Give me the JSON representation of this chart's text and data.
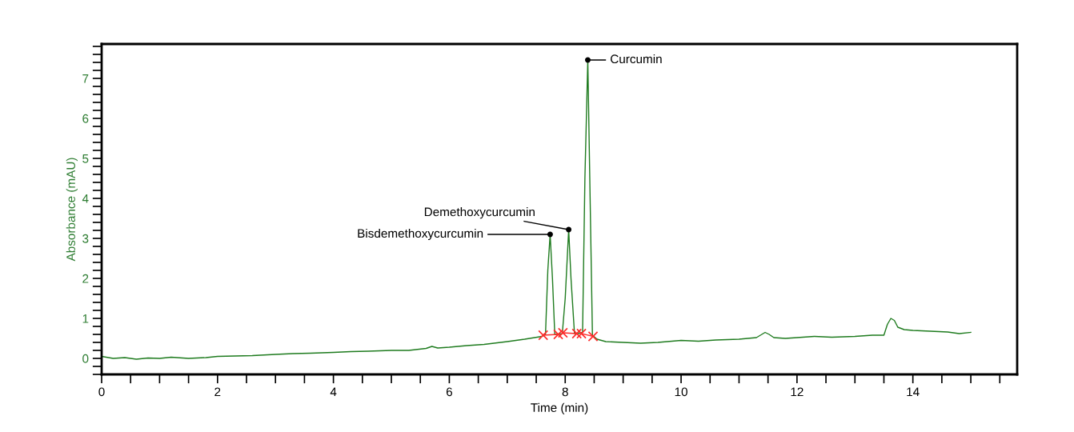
{
  "chart_data": {
    "type": "line",
    "xlabel": "Time (min)",
    "ylabel": "Absorbance (mAU)",
    "xlim": [
      0,
      15.8
    ],
    "ylim": [
      -0.4,
      7.86
    ],
    "xticks": [
      0,
      {
        "value": 0.5,
        "label": null
      },
      {
        "value": 1,
        "label": null
      },
      {
        "value": 1.5,
        "label": null
      },
      2,
      {
        "value": 2.5,
        "label": null
      },
      {
        "value": 3,
        "label": null
      },
      {
        "value": 3.5,
        "label": null
      },
      4,
      {
        "value": 4.5,
        "label": null
      },
      {
        "value": 5,
        "label": null
      },
      {
        "value": 5.5,
        "label": null
      },
      6,
      {
        "value": 6.5,
        "label": null
      },
      {
        "value": 7,
        "label": null
      },
      {
        "value": 7.5,
        "label": null
      },
      8,
      {
        "value": 8.5,
        "label": null
      },
      {
        "value": 9,
        "label": null
      },
      {
        "value": 9.5,
        "label": null
      },
      10,
      {
        "value": 10.5,
        "label": null
      },
      {
        "value": 11,
        "label": null
      },
      {
        "value": 11.5,
        "label": null
      },
      12,
      {
        "value": 12.5,
        "label": null
      },
      {
        "value": 13,
        "label": null
      },
      {
        "value": 13.5,
        "label": null
      },
      14,
      {
        "value": 14.5,
        "label": null
      },
      {
        "value": 15,
        "label": null
      },
      {
        "value": 15.5,
        "label": null
      }
    ],
    "yticks": [
      {
        "value": -0.4,
        "label": null
      },
      {
        "value": -0.2,
        "label": null
      },
      0,
      {
        "value": 0.2,
        "label": null
      },
      {
        "value": 0.4,
        "label": null
      },
      {
        "value": 0.6,
        "label": null
      },
      {
        "value": 0.8,
        "label": null
      },
      1,
      {
        "value": 1.2,
        "label": null
      },
      {
        "value": 1.4,
        "label": null
      },
      {
        "value": 1.6,
        "label": null
      },
      {
        "value": 1.8,
        "label": null
      },
      2,
      {
        "value": 2.2,
        "label": null
      },
      {
        "value": 2.4,
        "label": null
      },
      {
        "value": 2.6,
        "label": null
      },
      {
        "value": 2.8,
        "label": null
      },
      3,
      {
        "value": 3.2,
        "label": null
      },
      {
        "value": 3.4,
        "label": null
      },
      {
        "value": 3.6,
        "label": null
      },
      {
        "value": 3.8,
        "label": null
      },
      4,
      {
        "value": 4.2,
        "label": null
      },
      {
        "value": 4.4,
        "label": null
      },
      {
        "value": 4.6,
        "label": null
      },
      {
        "value": 4.8,
        "label": null
      },
      5,
      {
        "value": 5.2,
        "label": null
      },
      {
        "value": 5.4,
        "label": null
      },
      {
        "value": 5.6,
        "label": null
      },
      {
        "value": 5.8,
        "label": null
      },
      6,
      {
        "value": 6.2,
        "label": null
      },
      {
        "value": 6.4,
        "label": null
      },
      {
        "value": 6.6,
        "label": null
      },
      {
        "value": 6.8,
        "label": null
      },
      7,
      {
        "value": 7.2,
        "label": null
      },
      {
        "value": 7.4,
        "label": null
      },
      {
        "value": 7.6,
        "label": null
      },
      {
        "value": 7.8,
        "label": null
      }
    ],
    "grid": false,
    "legend": false,
    "series": [
      {
        "color": "#1e7b1e",
        "marker": "none",
        "line_style": "solid",
        "x": [
          0,
          0.2,
          0.4,
          0.6,
          0.8,
          1.0,
          1.2,
          1.5,
          1.8,
          2.0,
          2.3,
          2.6,
          3.0,
          3.3,
          3.6,
          4.0,
          4.3,
          4.6,
          5.0,
          5.3,
          5.6,
          5.7,
          5.8,
          6.0,
          6.3,
          6.6,
          7.0,
          7.3,
          7.6,
          7.66,
          7.7,
          7.74,
          7.78,
          7.82,
          7.88,
          7.95,
          8.0,
          8.06,
          8.1,
          8.16,
          8.22,
          8.3,
          8.34,
          8.39,
          8.43,
          8.47,
          8.55,
          8.7,
          9.0,
          9.3,
          9.6,
          10.0,
          10.3,
          10.6,
          11.0,
          11.3,
          11.45,
          11.52,
          11.6,
          11.8,
          12.0,
          12.3,
          12.6,
          13.0,
          13.3,
          13.5,
          13.56,
          13.62,
          13.68,
          13.74,
          13.85,
          14.0,
          14.3,
          14.6,
          14.8,
          15.0
        ],
        "values": [
          0.05,
          0.0,
          0.02,
          -0.02,
          0.01,
          0.0,
          0.03,
          0.0,
          0.02,
          0.05,
          0.06,
          0.07,
          0.1,
          0.12,
          0.13,
          0.15,
          0.17,
          0.18,
          0.2,
          0.2,
          0.25,
          0.3,
          0.26,
          0.28,
          0.32,
          0.35,
          0.42,
          0.48,
          0.55,
          0.6,
          2.2,
          3.1,
          2.0,
          0.6,
          0.6,
          0.62,
          1.5,
          3.22,
          2.0,
          0.62,
          0.62,
          0.65,
          4.5,
          7.46,
          4.0,
          0.58,
          0.48,
          0.42,
          0.4,
          0.38,
          0.4,
          0.45,
          0.43,
          0.46,
          0.48,
          0.52,
          0.65,
          0.6,
          0.52,
          0.5,
          0.52,
          0.55,
          0.53,
          0.55,
          0.58,
          0.58,
          0.85,
          1.0,
          0.95,
          0.78,
          0.72,
          0.7,
          0.68,
          0.66,
          0.62,
          0.65
        ]
      },
      {
        "color": "#ff2a2a",
        "marker": "cross",
        "line_style": "solid",
        "x": [
          7.62,
          7.88,
          7.9,
          7.96,
          8.2,
          8.22,
          8.28,
          8.48
        ],
        "values": [
          0.58,
          0.6,
          null,
          0.64,
          0.62,
          null,
          0.62,
          0.55
        ]
      }
    ],
    "annotations": [
      {
        "text": "Bisdemethoxycurcumin",
        "x": 7.74,
        "y": 3.1
      },
      {
        "text": "Demethoxycurcumin",
        "x": 8.06,
        "y": 3.22
      },
      {
        "text": "Curcumin",
        "x": 8.39,
        "y": 7.46
      }
    ]
  }
}
